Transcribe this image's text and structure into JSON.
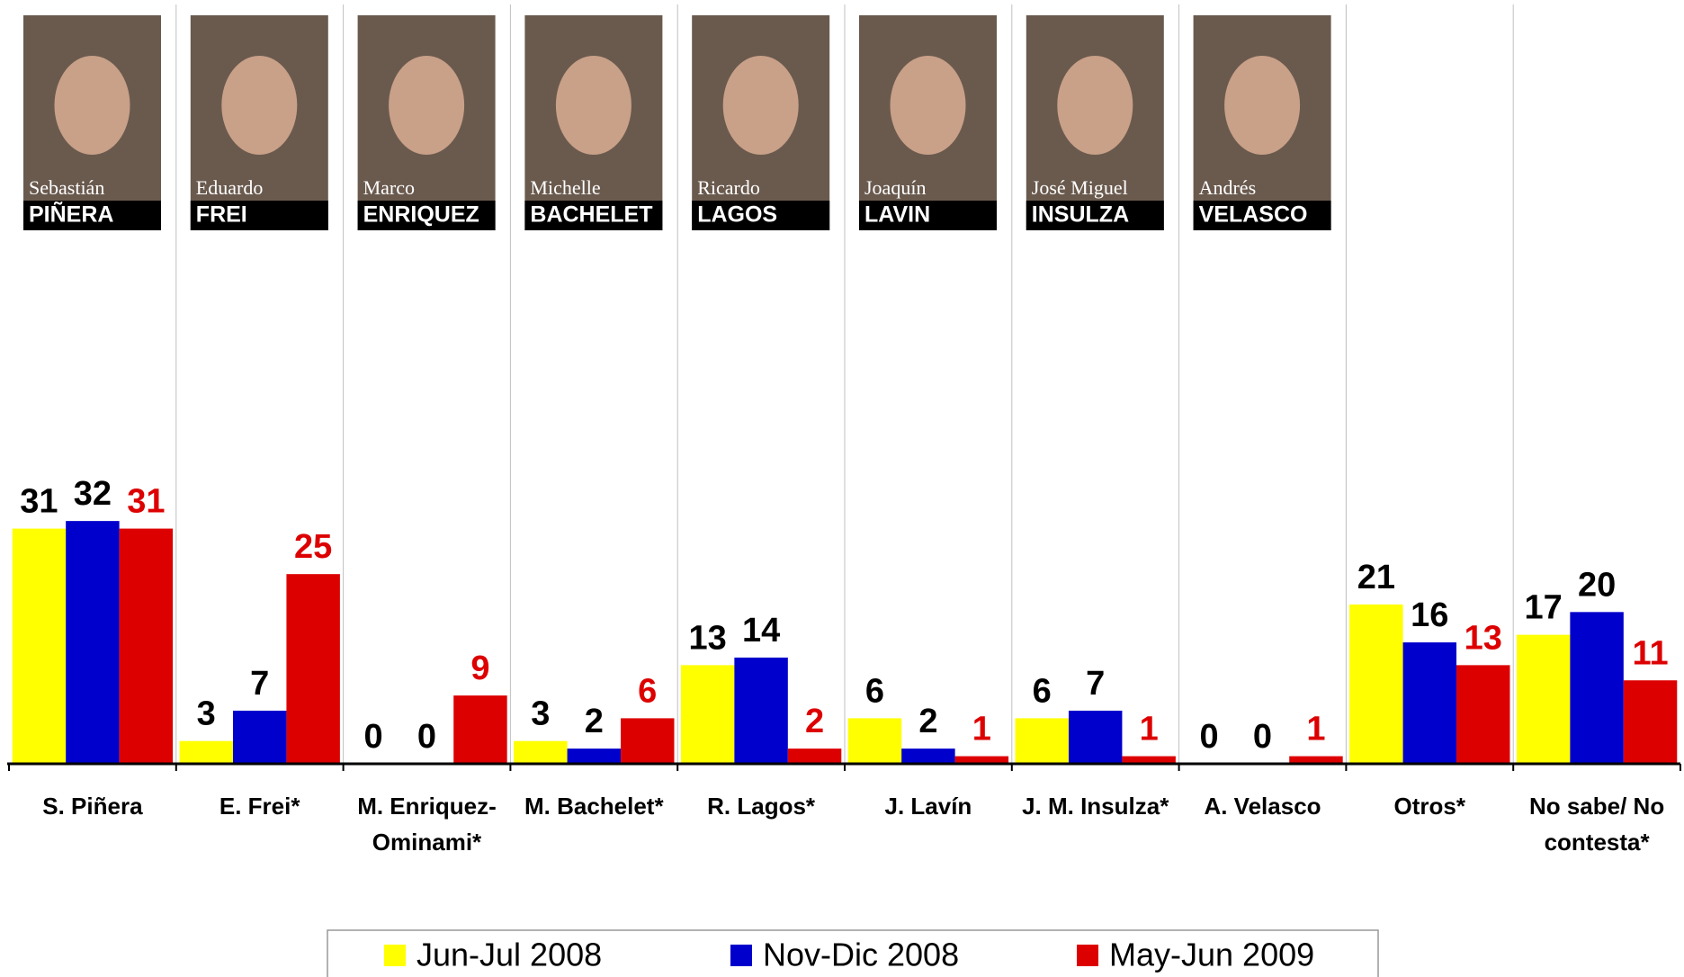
{
  "chart_data": {
    "type": "bar",
    "categories": [
      "S. Piñera",
      "E. Frei*",
      "M. Enriquez-Ominami*",
      "M. Bachelet*",
      "R. Lagos*",
      "J. Lavín",
      "J. M. Insulza*",
      "A. Velasco",
      "Otros*",
      "No sabe/ No contesta*"
    ],
    "series": [
      {
        "name": "Jun-Jul 2008",
        "color": "#ffff00",
        "label_color": "#000000",
        "values": [
          31,
          3,
          0,
          3,
          13,
          6,
          6,
          0,
          21,
          17
        ]
      },
      {
        "name": "Nov-Dic 2008",
        "color": "#0000cc",
        "label_color": "#000000",
        "values": [
          32,
          7,
          0,
          2,
          14,
          2,
          7,
          0,
          16,
          20
        ]
      },
      {
        "name": "May-Jun 2009",
        "color": "#dd0000",
        "label_color": "#dd0000",
        "values": [
          31,
          25,
          9,
          6,
          2,
          1,
          1,
          1,
          13,
          11
        ]
      }
    ],
    "ylim": [
      0,
      60
    ],
    "legend": "bottom"
  },
  "photos": [
    {
      "first": "Sebastián",
      "last": "PIÑERA"
    },
    {
      "first": "Eduardo",
      "last": "FREI"
    },
    {
      "first": "Marco",
      "last": "ENRIQUEZ"
    },
    {
      "first": "Michelle",
      "last": "BACHELET"
    },
    {
      "first": "Ricardo",
      "last": "LAGOS"
    },
    {
      "first": "Joaquín",
      "last": "LAVIN"
    },
    {
      "first": "José Miguel",
      "last": "INSULZA"
    },
    {
      "first": "Andrés",
      "last": "VELASCO"
    }
  ]
}
